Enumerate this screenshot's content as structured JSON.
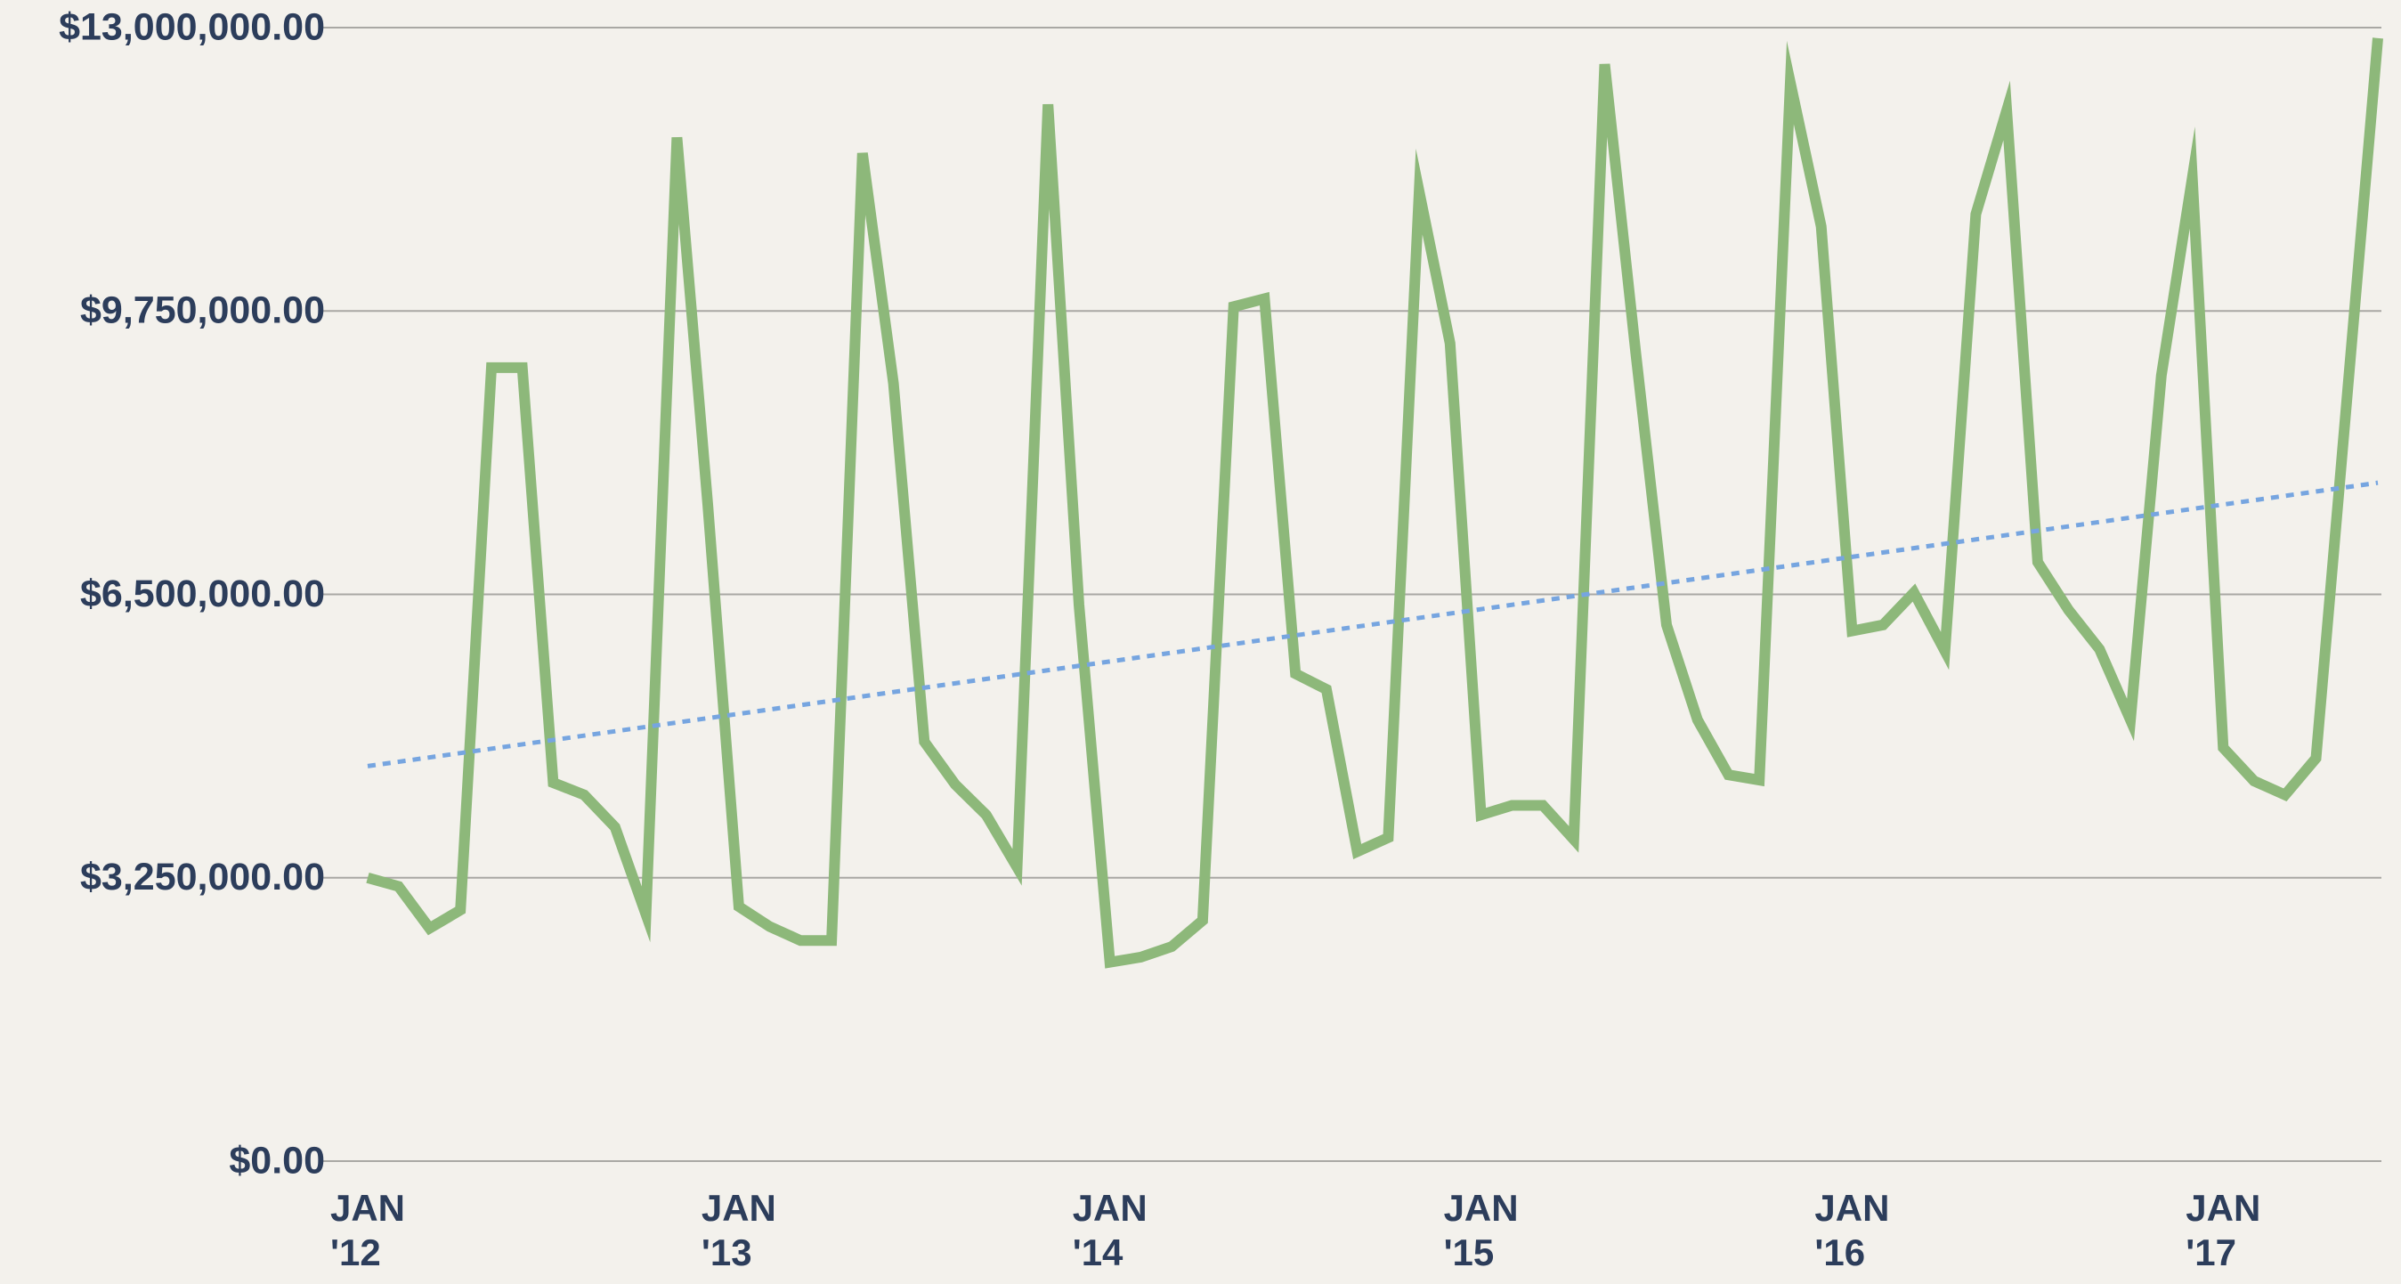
{
  "chart_data": {
    "type": "line",
    "categories": [
      "JAN '12",
      null,
      null,
      null,
      null,
      null,
      null,
      null,
      null,
      null,
      null,
      null,
      "JAN '13",
      null,
      null,
      null,
      null,
      null,
      null,
      null,
      null,
      null,
      null,
      null,
      "JAN '14",
      null,
      null,
      null,
      null,
      null,
      null,
      null,
      null,
      null,
      null,
      null,
      "JAN '15",
      null,
      null,
      null,
      null,
      null,
      null,
      null,
      null,
      null,
      null,
      null,
      "JAN '16",
      null,
      null,
      null,
      null,
      null,
      null,
      null,
      null,
      null,
      null,
      null,
      "JAN '17",
      null,
      null,
      null,
      null,
      null
    ],
    "series": [
      {
        "color": "#8db87a",
        "values": [
          3250000,
          3150000,
          2670000,
          2880000,
          9100000,
          9100000,
          4340000,
          4200000,
          3830000,
          2830000,
          11740000,
          7520000,
          2920000,
          2690000,
          2530000,
          2530000,
          11560000,
          8920000,
          4810000,
          4320000,
          3970000,
          3370000,
          12120000,
          6380000,
          2280000,
          2340000,
          2460000,
          2760000,
          9800000,
          9890000,
          5590000,
          5410000,
          3550000,
          3710000,
          11120000,
          9380000,
          3970000,
          4080000,
          4080000,
          3690000,
          12580000,
          9280000,
          6150000,
          5060000,
          4430000,
          4370000,
          12370000,
          10720000,
          6080000,
          6150000,
          6520000,
          5850000,
          10860000,
          12050000,
          6870000,
          6320000,
          5870000,
          5060000,
          9010000,
          11280000,
          4740000,
          4360000,
          4200000,
          4620000,
          8750000,
          12880000
        ]
      }
    ],
    "trendline": {
      "color": "#76a5e0",
      "values": [
        4530000,
        7780000
      ]
    },
    "ylim": [
      0,
      13000000
    ],
    "yticks": [
      {
        "value": 0,
        "label": "$0.00"
      },
      {
        "value": 3250000,
        "label": "$3,250,000.00"
      },
      {
        "value": 6500000,
        "label": "$6,500,000.00"
      },
      {
        "value": 9750000,
        "label": "$9,750,000.00"
      },
      {
        "value": 13000000,
        "label": "$13,000,000.00"
      }
    ],
    "grid": true
  }
}
